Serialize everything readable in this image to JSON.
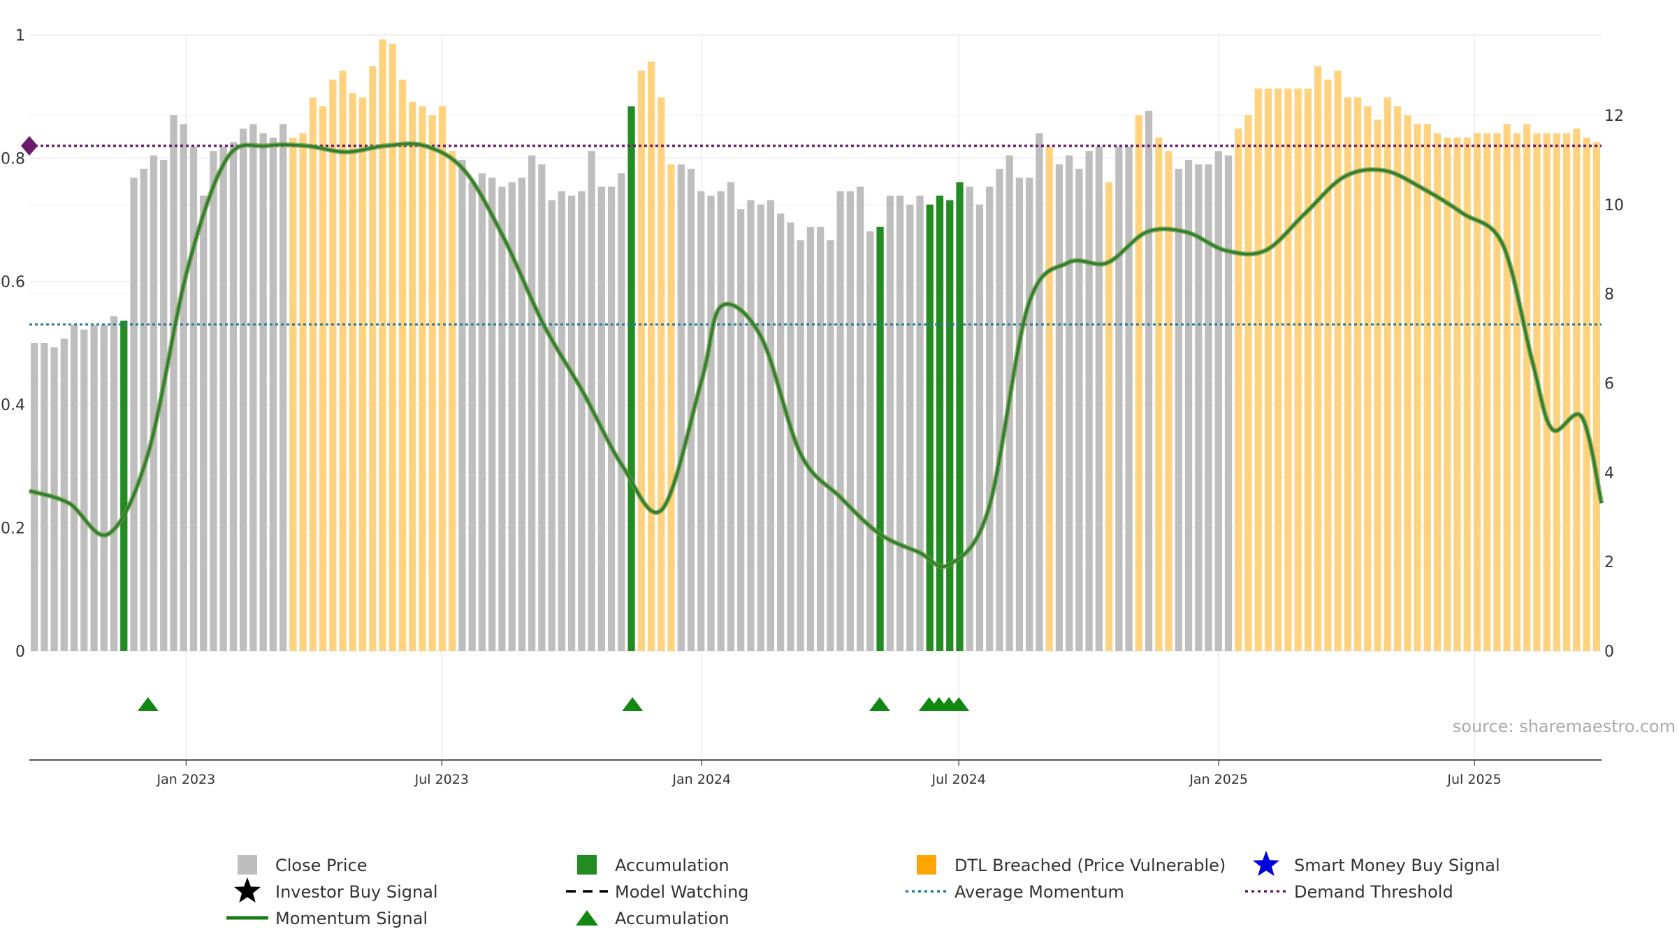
{
  "chart_data": {
    "type": "bar",
    "title": "",
    "source_text": "source: sharemaestro.com",
    "x_start": "2022-09-12",
    "x_end": "2025-09-29",
    "x_ticks": [
      "Jan 2023",
      "Jul 2023",
      "Jan 2024",
      "Jul 2024",
      "Jan 2025",
      "Jul 2025"
    ],
    "y_left": {
      "range": [
        0,
        1
      ],
      "ticks": [
        "0",
        "0.2",
        "0.4",
        "0.6",
        "0.8",
        "1"
      ]
    },
    "y_right": {
      "range": [
        0,
        13.8
      ],
      "ticks": [
        "0",
        "2",
        "4",
        "6",
        "8",
        "10",
        "12"
      ]
    },
    "grid": true,
    "legend_position": "bottom",
    "colors": {
      "close": "#bebebe",
      "accumulation": "#228b22",
      "dtl": "#ffd27f",
      "momentum": "#2e7d32",
      "average_momentum": "#2a7a9a",
      "demand_threshold": "#6b1a6b",
      "smart_money": "#0000dd",
      "investor": "#000000"
    },
    "bar_series": {
      "name": "Close Price",
      "axis": "right",
      "values": [
        6.9,
        6.9,
        6.8,
        7.0,
        7.3,
        7.2,
        7.3,
        7.3,
        7.5,
        7.4,
        10.6,
        10.8,
        11.1,
        11.0,
        12.0,
        11.8,
        11.3,
        10.2,
        11.2,
        11.3,
        11.4,
        11.7,
        11.8,
        11.6,
        11.5,
        11.8,
        11.5,
        11.6,
        12.4,
        12.2,
        12.8,
        13.0,
        12.5,
        12.4,
        13.1,
        13.7,
        13.6,
        12.8,
        12.3,
        12.2,
        12.0,
        12.2,
        11.2,
        11.0,
        10.5,
        10.7,
        10.6,
        10.4,
        10.5,
        10.6,
        11.1,
        10.9,
        10.1,
        10.3,
        10.2,
        10.3,
        11.2,
        10.4,
        10.4,
        10.7,
        12.2,
        13.0,
        13.2,
        12.4,
        10.9,
        10.9,
        10.8,
        10.3,
        10.2,
        10.3,
        10.5,
        9.9,
        10.1,
        10.0,
        10.1,
        9.8,
        9.6,
        9.2,
        9.5,
        9.5,
        9.2,
        10.3,
        10.3,
        10.4,
        9.4,
        9.5,
        10.2,
        10.2,
        10.0,
        10.2,
        10.0,
        10.2,
        10.1,
        10.5,
        10.4,
        10.0,
        10.4,
        10.8,
        11.1,
        10.6,
        10.6,
        11.6,
        11.3,
        10.9,
        11.1,
        10.8,
        11.2,
        11.3,
        10.5,
        11.3,
        11.3,
        12.0,
        12.1,
        11.5,
        11.2,
        10.8,
        11.0,
        10.9,
        10.9,
        11.2,
        11.1,
        11.7,
        12.0,
        12.6,
        12.6,
        12.6,
        12.6,
        12.6,
        12.6,
        13.1,
        12.8,
        13.0,
        12.4,
        12.4,
        12.2,
        11.9,
        12.4,
        12.2,
        12.0,
        11.8,
        11.8,
        11.6,
        11.5,
        11.5,
        11.5,
        11.6,
        11.6,
        11.6,
        11.8,
        11.6,
        11.8,
        11.6,
        11.6,
        11.6,
        11.6,
        11.7,
        11.5,
        11.4
      ],
      "accumulation_index": [
        9,
        60,
        85,
        90,
        91,
        92,
        93
      ],
      "dtl_breached_ranges": [
        [
          26,
          42
        ],
        [
          61,
          64
        ],
        [
          102,
          102
        ],
        [
          108,
          108
        ],
        [
          111,
          111
        ],
        [
          113,
          114
        ],
        [
          121,
          168
        ]
      ]
    },
    "momentum_signal": {
      "name": "Momentum Signal",
      "axis": "left",
      "x": [
        "2022-09-12",
        "2022-10-10",
        "2022-11-07",
        "2022-12-05",
        "2023-01-02",
        "2023-01-30",
        "2023-02-27",
        "2023-03-27",
        "2023-04-24",
        "2023-05-22",
        "2023-06-19",
        "2023-07-17",
        "2023-08-14",
        "2023-09-11",
        "2023-10-09",
        "2023-11-06",
        "2023-12-04",
        "2024-01-01",
        "2024-01-15",
        "2024-02-12",
        "2024-03-11",
        "2024-04-08",
        "2024-05-06",
        "2024-06-03",
        "2024-06-24",
        "2024-07-22",
        "2024-08-19",
        "2024-09-16",
        "2024-10-14",
        "2024-11-11",
        "2024-12-09",
        "2025-01-06",
        "2025-02-03",
        "2025-03-03",
        "2025-03-31",
        "2025-04-28",
        "2025-05-26",
        "2025-06-23",
        "2025-07-21",
        "2025-08-11",
        "2025-08-25",
        "2025-09-15",
        "2025-09-29"
      ],
      "y": [
        0.26,
        0.24,
        0.19,
        0.32,
        0.62,
        0.8,
        0.82,
        0.82,
        0.81,
        0.82,
        0.82,
        0.78,
        0.67,
        0.53,
        0.42,
        0.3,
        0.23,
        0.44,
        0.56,
        0.51,
        0.32,
        0.25,
        0.19,
        0.16,
        0.14,
        0.23,
        0.56,
        0.63,
        0.63,
        0.68,
        0.68,
        0.65,
        0.65,
        0.71,
        0.77,
        0.78,
        0.75,
        0.71,
        0.66,
        0.47,
        0.36,
        0.38,
        0.24
      ]
    },
    "accumulation_markers": {
      "name": "Accumulation",
      "dates": [
        "2022-12-05",
        "2023-11-13",
        "2024-05-06",
        "2024-06-10",
        "2024-06-17",
        "2024-06-24",
        "2024-07-01"
      ]
    },
    "average_momentum": {
      "name": "Average Momentum",
      "value": 0.53
    },
    "demand_threshold": {
      "name": "Demand Threshold",
      "value": 0.82
    },
    "legend": [
      {
        "label": "Close Price",
        "symbol": "square",
        "color": "#bebebe"
      },
      {
        "label": "Accumulation",
        "symbol": "square",
        "color": "#228b22"
      },
      {
        "label": "DTL Breached (Price Vulnerable)",
        "symbol": "square",
        "color": "#ffa500"
      },
      {
        "label": "Smart Money Buy Signal",
        "symbol": "star",
        "color": "#0000dd"
      },
      {
        "label": "Investor Buy Signal",
        "symbol": "star",
        "color": "#000000"
      },
      {
        "label": "Model Watching",
        "symbol": "dash",
        "color": "#000000"
      },
      {
        "label": "Average Momentum",
        "symbol": "dot",
        "color": "#2a7a9a"
      },
      {
        "label": "Demand Threshold",
        "symbol": "dot",
        "color": "#6b1a6b"
      },
      {
        "label": "Momentum Signal",
        "symbol": "line",
        "color": "#1a7a1a"
      },
      {
        "label": "Accumulation",
        "symbol": "triangle",
        "color": "#118811"
      }
    ]
  }
}
